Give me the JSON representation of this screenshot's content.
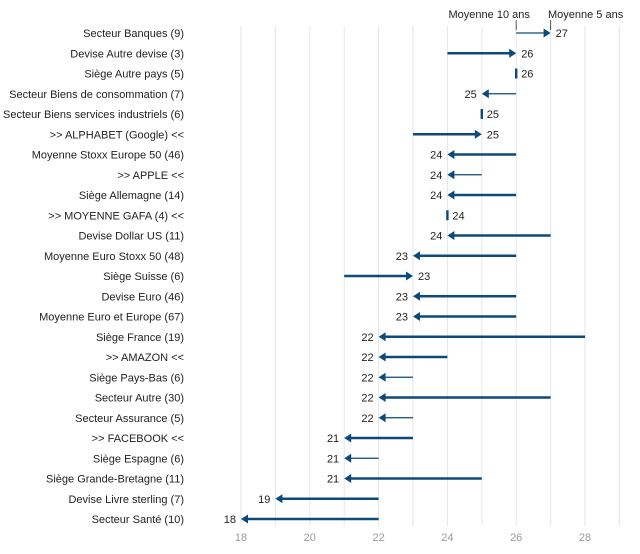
{
  "chart_data": {
    "type": "arrow",
    "xlim": [
      18,
      29
    ],
    "x_ticks": [
      "18",
      "20",
      "22",
      "24",
      "26",
      "28"
    ],
    "grid": true,
    "legend": "none",
    "color": "#0d4a7a",
    "reference_lines": [
      {
        "label": "Moyenne 10 ans",
        "x": 26
      },
      {
        "label": "Moyenne 5 ans",
        "x": 27
      }
    ],
    "rows": [
      {
        "category": "Secteur Banques (9)",
        "start": 26,
        "end": 27,
        "label": "27"
      },
      {
        "category": "Devise Autre devise (3)",
        "start": 24,
        "end": 26,
        "label": "26"
      },
      {
        "category": "Siège Autre pays (5)",
        "start": 26,
        "end": 26,
        "label": "26"
      },
      {
        "category": "Secteur Biens de consommation (7)",
        "start": 26,
        "end": 25,
        "label": "25"
      },
      {
        "category": "Secteur Biens services industriels (6)",
        "start": 25,
        "end": 25,
        "label": "25"
      },
      {
        "category": ">> ALPHABET (Google) <<",
        "start": 23,
        "end": 25,
        "label": "25"
      },
      {
        "category": "Moyenne Stoxx Europe 50 (46)",
        "start": 26,
        "end": 24,
        "label": "24"
      },
      {
        "category": ">> APPLE <<",
        "start": 25,
        "end": 24,
        "label": "24"
      },
      {
        "category": "Siège Allemagne (14)",
        "start": 26,
        "end": 24,
        "label": "24"
      },
      {
        "category": ">> MOYENNE GAFA (4) <<",
        "start": 24,
        "end": 24,
        "label": "24"
      },
      {
        "category": "Devise Dollar US (11)",
        "start": 27,
        "end": 24,
        "label": "24"
      },
      {
        "category": "Moyenne Euro Stoxx 50 (48)",
        "start": 26,
        "end": 23,
        "label": "23"
      },
      {
        "category": "Siège Suisse (6)",
        "start": 21,
        "end": 23,
        "label": "23"
      },
      {
        "category": "Devise Euro (46)",
        "start": 26,
        "end": 23,
        "label": "23"
      },
      {
        "category": "Moyenne Euro et Europe (67)",
        "start": 26,
        "end": 23,
        "label": "23"
      },
      {
        "category": "Siège France (19)",
        "start": 28,
        "end": 22,
        "label": "22"
      },
      {
        "category": ">> AMAZON <<",
        "start": 24,
        "end": 22,
        "label": "22"
      },
      {
        "category": "Siège Pays-Bas (6)",
        "start": 23,
        "end": 22,
        "label": "22"
      },
      {
        "category": "Secteur Autre (30)",
        "start": 27,
        "end": 22,
        "label": "22"
      },
      {
        "category": "Secteur Assurance (5)",
        "start": 23,
        "end": 22,
        "label": "22"
      },
      {
        "category": ">> FACEBOOK <<",
        "start": 23,
        "end": 21,
        "label": "21"
      },
      {
        "category": "Siège Espagne (6)",
        "start": 22,
        "end": 21,
        "label": "21"
      },
      {
        "category": "Siège Grande-Bretagne (11)",
        "start": 25,
        "end": 21,
        "label": "21"
      },
      {
        "category": "Devise Livre sterling (7)",
        "start": 22,
        "end": 19,
        "label": "19"
      },
      {
        "category": "Secteur Santé (10)",
        "start": 22,
        "end": 18,
        "label": "18"
      }
    ]
  }
}
